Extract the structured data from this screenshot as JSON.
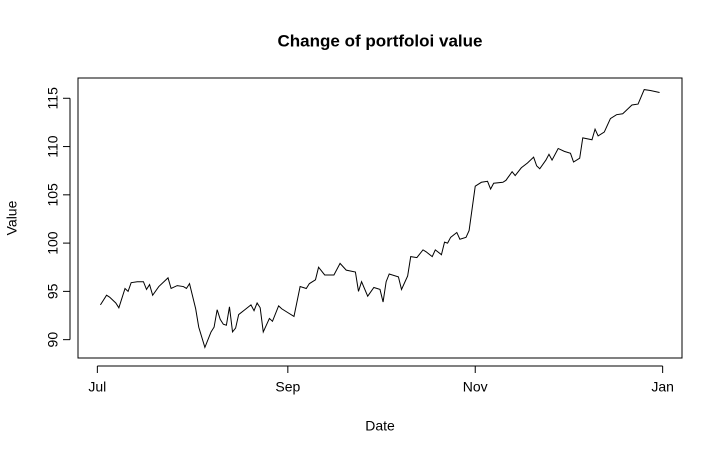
{
  "chart_data": {
    "type": "line",
    "title": "Change of portfoloi value",
    "xlabel": "Date",
    "ylabel": "Value",
    "x": [
      1,
      3,
      4,
      6,
      7,
      9,
      10,
      11,
      13,
      15,
      16,
      17,
      18,
      20,
      23,
      24,
      26,
      28,
      29,
      30,
      32,
      33,
      35,
      37,
      38,
      39,
      40,
      41,
      42,
      43,
      44,
      45,
      46,
      48,
      50,
      51,
      52,
      53,
      54,
      55,
      56,
      57,
      59,
      60,
      62,
      64,
      66,
      68,
      69,
      71,
      72,
      74,
      77,
      79,
      81,
      84,
      85,
      86,
      88,
      90,
      92,
      93,
      94,
      95,
      98,
      99,
      101,
      102,
      104,
      106,
      107,
      109,
      110,
      112,
      113,
      114,
      115,
      117,
      118,
      120,
      121,
      123,
      125,
      127,
      128,
      129,
      132,
      133,
      135,
      136,
      138,
      140,
      142,
      143,
      144,
      146,
      147,
      148,
      150,
      152,
      154,
      155,
      157,
      158,
      161,
      162,
      163,
      165,
      167,
      169,
      171,
      172,
      174,
      176,
      178,
      180,
      183
    ],
    "series": [
      {
        "name": "Value",
        "color": "#000000",
        "values": [
          93.6,
          94.6,
          94.4,
          93.8,
          93.3,
          95.3,
          95.0,
          95.9,
          96.0,
          96.0,
          95.2,
          95.7,
          94.6,
          95.5,
          96.4,
          95.3,
          95.6,
          95.5,
          95.3,
          95.8,
          93.2,
          91.3,
          89.2,
          90.8,
          91.3,
          93.1,
          92.1,
          91.6,
          91.5,
          93.4,
          90.8,
          91.2,
          92.6,
          93.1,
          93.6,
          93.0,
          93.8,
          93.3,
          90.8,
          91.5,
          92.2,
          91.9,
          93.5,
          93.2,
          92.8,
          92.4,
          95.5,
          95.3,
          95.8,
          96.2,
          97.5,
          96.7,
          96.7,
          97.9,
          97.2,
          97.0,
          95.0,
          96.0,
          94.5,
          95.4,
          95.2,
          93.9,
          96.0,
          96.8,
          96.5,
          95.2,
          96.6,
          98.6,
          98.5,
          99.3,
          99.1,
          98.6,
          99.3,
          98.8,
          100.1,
          100.0,
          100.6,
          101.1,
          100.4,
          100.6,
          101.3,
          105.9,
          106.3,
          106.4,
          105.6,
          106.2,
          106.3,
          106.5,
          107.4,
          107.0,
          107.8,
          108.3,
          108.9,
          108.0,
          107.7,
          108.6,
          109.2,
          108.6,
          109.8,
          109.5,
          109.3,
          108.4,
          108.8,
          110.9,
          110.7,
          111.8,
          111.1,
          111.5,
          112.9,
          113.3,
          113.4,
          113.7,
          114.3,
          114.4,
          115.9,
          115.8,
          115.6
        ]
      }
    ],
    "xlim": [
      -6.3,
      190.3
    ],
    "xticks": [
      {
        "value": 0,
        "label": "Jul"
      },
      {
        "value": 62,
        "label": "Sep"
      },
      {
        "value": 123,
        "label": "Nov"
      },
      {
        "value": 184,
        "label": "Jan"
      }
    ],
    "ylim": [
      88.1,
      117.1
    ],
    "yticks": [
      90,
      95,
      100,
      105,
      110,
      115
    ],
    "grid": false
  }
}
